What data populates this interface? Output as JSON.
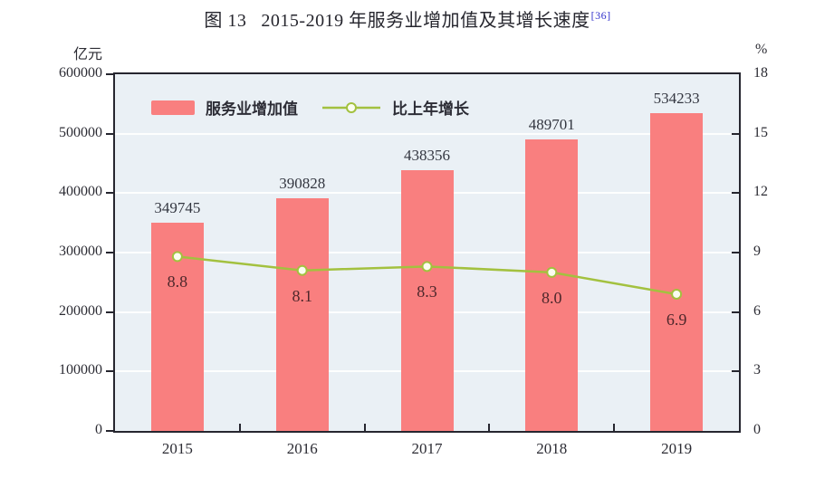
{
  "title": {
    "prefix": "图 13",
    "main": "2015-2019 年服务业增加值及其增长速度",
    "superscript": "[36]"
  },
  "colors": {
    "bar": "#f97f7f",
    "line": "#a3c13f",
    "marker_fill": "#fbfdf0",
    "plot_background": "#eaf0f5",
    "frame": "#26262f",
    "bar_value_label": "#333640",
    "growth_value_label": "#4d272b",
    "footnote_ref": "#3333cc"
  },
  "chart_data": {
    "type": "bar",
    "combo": "bar+line",
    "title": "图 13 2015-2019 年服务业增加值及其增长速度",
    "footnote_ref": "[36]",
    "categories": [
      "2015",
      "2016",
      "2017",
      "2018",
      "2019"
    ],
    "series": [
      {
        "name": "服务业增加值",
        "type": "bar",
        "axis": "left",
        "values": [
          349745,
          390828,
          438356,
          489701,
          534233
        ],
        "color": "#f97f7f"
      },
      {
        "name": "比上年增长",
        "type": "line",
        "axis": "right",
        "values": [
          8.8,
          8.1,
          8.3,
          8.0,
          6.9
        ],
        "color": "#a3c13f"
      }
    ],
    "left_axis": {
      "unit": "亿元",
      "min": 0,
      "max": 600000,
      "step": 100000,
      "ticks": [
        "0",
        "100000",
        "200000",
        "300000",
        "400000",
        "500000",
        "600000"
      ]
    },
    "right_axis": {
      "unit": "%",
      "min": 0,
      "max": 18,
      "step": 3,
      "ticks": [
        "0",
        "3",
        "6",
        "9",
        "12",
        "15",
        "18"
      ]
    },
    "legend_position": "top-left-inside",
    "grid": "horizontal",
    "xlabel": "",
    "ylabel_left": "亿元",
    "ylabel_right": "%"
  }
}
